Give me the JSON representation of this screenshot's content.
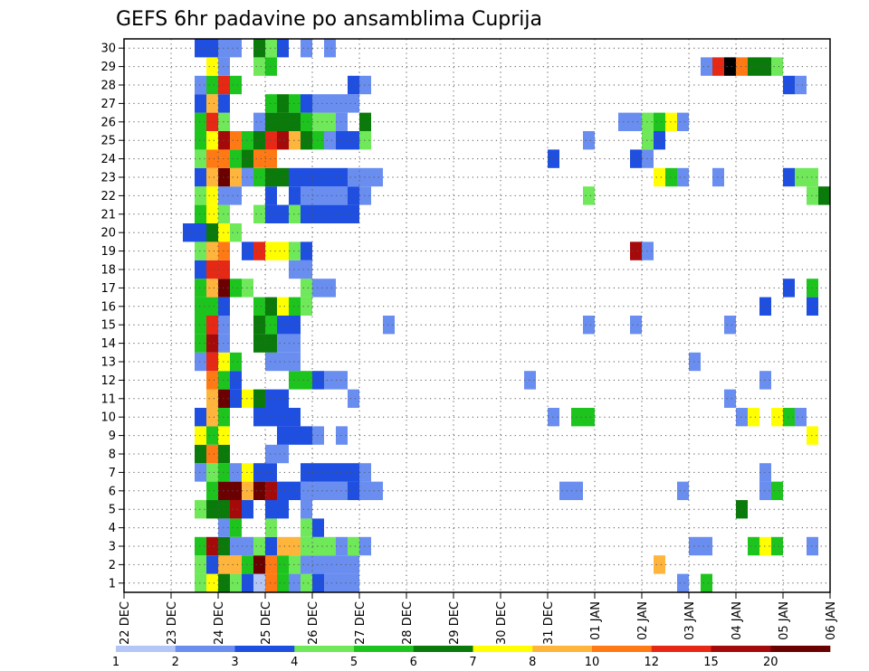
{
  "chart_data": {
    "type": "heatmap",
    "title": "GEFS 6hr padavine po ansamblima Cuprija",
    "x_tick_labels": [
      "22 DEC",
      "23 DEC",
      "24 DEC",
      "25 DEC",
      "26 DEC",
      "27 DEC",
      "28 DEC",
      "29 DEC",
      "30 DEC",
      "31 DEC",
      "01 JAN",
      "02 JAN",
      "03 JAN",
      "04 JAN",
      "05 JAN",
      "06 JAN"
    ],
    "y_tick_labels": [
      "1",
      "2",
      "3",
      "4",
      "5",
      "6",
      "7",
      "8",
      "9",
      "10",
      "11",
      "12",
      "13",
      "14",
      "15",
      "16",
      "17",
      "18",
      "19",
      "20",
      "21",
      "22",
      "23",
      "24",
      "25",
      "26",
      "27",
      "28",
      "29",
      "30"
    ],
    "xlim": [
      0,
      60
    ],
    "ylim": [
      0.5,
      30.5
    ],
    "steps_per_day": 4,
    "grid": true,
    "colorbar": {
      "labels": [
        "1",
        "2",
        "3",
        "4",
        "5",
        "6",
        "7",
        "8",
        "10",
        "12",
        "15",
        "20"
      ],
      "colors": [
        "#b4c6f5",
        "#6a8ef0",
        "#1e4fe0",
        "#6fe85a",
        "#1ec41e",
        "#0a7a0a",
        "#ffff00",
        "#ffb43c",
        "#ff7a14",
        "#e62814",
        "#a50a0a",
        "#6b0000"
      ]
    },
    "levels": [
      [
        [
          7,
          3
        ],
        [
          8,
          6
        ],
        [
          9,
          5
        ],
        [
          10,
          3
        ],
        [
          11,
          2
        ],
        [
          12,
          0
        ],
        [
          13,
          8
        ],
        [
          14,
          4
        ],
        [
          15,
          1
        ],
        [
          16,
          3
        ],
        [
          17,
          2
        ],
        [
          18,
          1
        ],
        [
          19,
          1
        ],
        [
          20,
          1
        ],
        [
          48,
          1
        ],
        [
          50,
          4
        ]
      ],
      [
        [
          7,
          3
        ],
        [
          8,
          2
        ],
        [
          9,
          7
        ],
        [
          10,
          7
        ],
        [
          11,
          4
        ],
        [
          12,
          11
        ],
        [
          13,
          8
        ],
        [
          14,
          4
        ],
        [
          15,
          3
        ],
        [
          16,
          1
        ],
        [
          17,
          1
        ],
        [
          18,
          1
        ],
        [
          19,
          1
        ],
        [
          20,
          1
        ],
        [
          46,
          7
        ]
      ],
      [
        [
          7,
          4
        ],
        [
          8,
          10
        ],
        [
          9,
          5
        ],
        [
          10,
          1
        ],
        [
          11,
          1
        ],
        [
          12,
          3
        ],
        [
          13,
          2
        ],
        [
          14,
          7
        ],
        [
          15,
          7
        ],
        [
          16,
          3
        ],
        [
          17,
          3
        ],
        [
          18,
          3
        ],
        [
          19,
          1
        ],
        [
          20,
          3
        ],
        [
          21,
          1
        ],
        [
          49,
          1
        ],
        [
          50,
          1
        ],
        [
          54,
          4
        ],
        [
          55,
          6
        ],
        [
          56,
          4
        ],
        [
          59,
          1
        ]
      ],
      [
        [
          9,
          1
        ],
        [
          10,
          4
        ],
        [
          13,
          3
        ],
        [
          16,
          3
        ],
        [
          17,
          2
        ]
      ],
      [
        [
          7,
          3
        ],
        [
          8,
          5
        ],
        [
          9,
          5
        ],
        [
          10,
          10
        ],
        [
          11,
          2
        ],
        [
          13,
          2
        ],
        [
          14,
          2
        ],
        [
          16,
          1
        ],
        [
          53,
          5
        ]
      ],
      [
        [
          8,
          4
        ],
        [
          9,
          11
        ],
        [
          10,
          11
        ],
        [
          11,
          7
        ],
        [
          12,
          11
        ],
        [
          13,
          10
        ],
        [
          14,
          2
        ],
        [
          15,
          2
        ],
        [
          16,
          1
        ],
        [
          17,
          1
        ],
        [
          18,
          1
        ],
        [
          19,
          1
        ],
        [
          20,
          2
        ],
        [
          21,
          1
        ],
        [
          22,
          1
        ],
        [
          38,
          1
        ],
        [
          39,
          1
        ],
        [
          48,
          1
        ],
        [
          55,
          1
        ],
        [
          56,
          4
        ]
      ],
      [
        [
          7,
          1
        ],
        [
          8,
          3
        ],
        [
          9,
          4
        ],
        [
          10,
          1
        ],
        [
          11,
          6
        ],
        [
          12,
          2
        ],
        [
          13,
          2
        ],
        [
          16,
          2
        ],
        [
          17,
          2
        ],
        [
          18,
          2
        ],
        [
          19,
          2
        ],
        [
          20,
          2
        ],
        [
          21,
          1
        ],
        [
          55,
          1
        ]
      ],
      [
        [
          7,
          5
        ],
        [
          8,
          8
        ],
        [
          9,
          5
        ],
        [
          13,
          1
        ],
        [
          14,
          1
        ]
      ],
      [
        [
          7,
          6
        ],
        [
          8,
          4
        ],
        [
          9,
          6
        ],
        [
          14,
          2
        ],
        [
          15,
          2
        ],
        [
          16,
          2
        ],
        [
          17,
          1
        ],
        [
          19,
          1
        ],
        [
          59,
          6
        ]
      ],
      [
        [
          7,
          2
        ],
        [
          8,
          7
        ],
        [
          9,
          4
        ],
        [
          12,
          2
        ],
        [
          13,
          2
        ],
        [
          14,
          2
        ],
        [
          15,
          2
        ],
        [
          37,
          1
        ],
        [
          39,
          4
        ],
        [
          40,
          4
        ],
        [
          53,
          1
        ],
        [
          54,
          6
        ],
        [
          56,
          6
        ],
        [
          57,
          4
        ],
        [
          58,
          1
        ]
      ],
      [
        [
          8,
          7
        ],
        [
          9,
          11
        ],
        [
          10,
          2
        ],
        [
          11,
          6
        ],
        [
          12,
          5
        ],
        [
          13,
          2
        ],
        [
          14,
          2
        ],
        [
          20,
          1
        ],
        [
          52,
          1
        ]
      ],
      [
        [
          8,
          8
        ],
        [
          9,
          4
        ],
        [
          10,
          2
        ],
        [
          15,
          4
        ],
        [
          16,
          4
        ],
        [
          17,
          2
        ],
        [
          18,
          1
        ],
        [
          19,
          1
        ],
        [
          35,
          1
        ],
        [
          55,
          1
        ]
      ],
      [
        [
          7,
          1
        ],
        [
          8,
          9
        ],
        [
          9,
          6
        ],
        [
          10,
          4
        ],
        [
          13,
          1
        ],
        [
          14,
          1
        ],
        [
          15,
          1
        ],
        [
          49,
          1
        ]
      ],
      [
        [
          7,
          4
        ],
        [
          8,
          10
        ],
        [
          9,
          1
        ],
        [
          12,
          5
        ],
        [
          13,
          5
        ],
        [
          14,
          1
        ],
        [
          15,
          1
        ]
      ],
      [
        [
          7,
          4
        ],
        [
          8,
          9
        ],
        [
          9,
          1
        ],
        [
          12,
          5
        ],
        [
          13,
          4
        ],
        [
          14,
          2
        ],
        [
          15,
          2
        ],
        [
          23,
          1
        ],
        [
          40,
          1
        ],
        [
          44,
          1
        ],
        [
          52,
          1
        ]
      ],
      [
        [
          7,
          4
        ],
        [
          8,
          4
        ],
        [
          9,
          2
        ],
        [
          12,
          4
        ],
        [
          13,
          5
        ],
        [
          14,
          6
        ],
        [
          15,
          4
        ],
        [
          16,
          3
        ],
        [
          55,
          2
        ],
        [
          59,
          2
        ]
      ],
      [
        [
          7,
          4
        ],
        [
          8,
          7
        ],
        [
          9,
          11
        ],
        [
          10,
          4
        ],
        [
          11,
          3
        ],
        [
          16,
          3
        ],
        [
          17,
          1
        ],
        [
          18,
          1
        ],
        [
          57,
          2
        ],
        [
          59,
          4
        ]
      ],
      [
        [
          7,
          2
        ],
        [
          8,
          9
        ],
        [
          9,
          9
        ],
        [
          15,
          1
        ],
        [
          16,
          1
        ]
      ],
      [
        [
          7,
          3
        ],
        [
          8,
          7
        ],
        [
          9,
          8
        ],
        [
          11,
          2
        ],
        [
          12,
          9
        ],
        [
          13,
          6
        ],
        [
          14,
          6
        ],
        [
          15,
          3
        ],
        [
          16,
          2
        ],
        [
          44,
          10
        ],
        [
          45,
          1
        ]
      ],
      [
        [
          6,
          2
        ],
        [
          7,
          2
        ],
        [
          8,
          5
        ],
        [
          9,
          6
        ],
        [
          10,
          3
        ]
      ],
      [
        [
          7,
          4
        ],
        [
          8,
          6
        ],
        [
          9,
          3
        ],
        [
          12,
          3
        ],
        [
          13,
          2
        ],
        [
          14,
          2
        ],
        [
          15,
          3
        ],
        [
          16,
          2
        ],
        [
          17,
          2
        ],
        [
          18,
          2
        ],
        [
          19,
          2
        ],
        [
          20,
          2
        ]
      ],
      [
        [
          7,
          3
        ],
        [
          8,
          6
        ],
        [
          9,
          1
        ],
        [
          10,
          1
        ],
        [
          13,
          2
        ],
        [
          15,
          2
        ],
        [
          16,
          1
        ],
        [
          17,
          1
        ],
        [
          18,
          1
        ],
        [
          19,
          1
        ],
        [
          20,
          2
        ],
        [
          21,
          1
        ],
        [
          40,
          3
        ],
        [
          59,
          3
        ],
        [
          60,
          5
        ]
      ],
      [
        [
          7,
          2
        ],
        [
          8,
          7
        ],
        [
          9,
          11
        ],
        [
          10,
          7
        ],
        [
          11,
          1
        ],
        [
          12,
          4
        ],
        [
          13,
          5
        ],
        [
          14,
          5
        ],
        [
          15,
          2
        ],
        [
          16,
          2
        ],
        [
          17,
          2
        ],
        [
          18,
          2
        ],
        [
          19,
          2
        ],
        [
          20,
          1
        ],
        [
          21,
          1
        ],
        [
          22,
          1
        ],
        [
          46,
          6
        ],
        [
          47,
          4
        ],
        [
          48,
          1
        ],
        [
          51,
          1
        ],
        [
          57,
          2
        ],
        [
          58,
          3
        ],
        [
          59,
          3
        ]
      ],
      [
        [
          7,
          3
        ],
        [
          8,
          8
        ],
        [
          9,
          8
        ],
        [
          10,
          4
        ],
        [
          11,
          5
        ],
        [
          12,
          8
        ],
        [
          13,
          8
        ],
        [
          37,
          2
        ],
        [
          44,
          2
        ],
        [
          45,
          1
        ]
      ],
      [
        [
          7,
          4
        ],
        [
          8,
          6
        ],
        [
          9,
          10
        ],
        [
          10,
          8
        ],
        [
          11,
          4
        ],
        [
          12,
          5
        ],
        [
          13,
          9
        ],
        [
          14,
          10
        ],
        [
          15,
          7
        ],
        [
          16,
          5
        ],
        [
          17,
          4
        ],
        [
          18,
          1
        ],
        [
          19,
          2
        ],
        [
          20,
          2
        ],
        [
          21,
          3
        ],
        [
          40,
          1
        ],
        [
          45,
          3
        ],
        [
          46,
          2
        ]
      ],
      [
        [
          7,
          4
        ],
        [
          8,
          9
        ],
        [
          9,
          3
        ],
        [
          12,
          1
        ],
        [
          13,
          5
        ],
        [
          14,
          5
        ],
        [
          15,
          5
        ],
        [
          16,
          4
        ],
        [
          17,
          3
        ],
        [
          18,
          3
        ],
        [
          19,
          1
        ],
        [
          21,
          5
        ],
        [
          43,
          1
        ],
        [
          44,
          1
        ],
        [
          45,
          3
        ],
        [
          46,
          4
        ],
        [
          47,
          6
        ],
        [
          48,
          1
        ]
      ],
      [
        [
          7,
          2
        ],
        [
          8,
          7
        ],
        [
          9,
          2
        ],
        [
          13,
          4
        ],
        [
          14,
          5
        ],
        [
          15,
          4
        ],
        [
          16,
          2
        ],
        [
          17,
          1
        ],
        [
          18,
          1
        ],
        [
          19,
          1
        ],
        [
          20,
          1
        ]
      ],
      [
        [
          7,
          1
        ],
        [
          8,
          4
        ],
        [
          9,
          9
        ],
        [
          10,
          4
        ],
        [
          20,
          2
        ],
        [
          21,
          1
        ],
        [
          57,
          2
        ],
        [
          58,
          1
        ]
      ],
      [
        [
          8,
          6
        ],
        [
          9,
          1
        ],
        [
          12,
          3
        ],
        [
          13,
          4
        ],
        [
          50,
          1
        ],
        [
          51,
          9
        ],
        [
          52,
          12
        ],
        [
          53,
          8
        ],
        [
          54,
          5
        ],
        [
          55,
          5
        ],
        [
          56,
          3
        ]
      ],
      [
        [
          7,
          2
        ],
        [
          8,
          2
        ],
        [
          9,
          1
        ],
        [
          10,
          1
        ],
        [
          12,
          5
        ],
        [
          13,
          3
        ],
        [
          14,
          2
        ],
        [
          16,
          1
        ],
        [
          18,
          1
        ]
      ]
    ]
  }
}
